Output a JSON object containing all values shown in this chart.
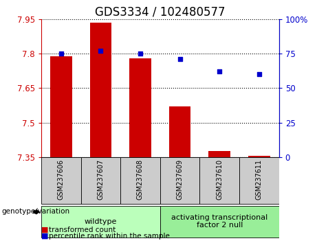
{
  "title": "GDS3334 / 102480577",
  "categories": [
    "GSM237606",
    "GSM237607",
    "GSM237608",
    "GSM237609",
    "GSM237610",
    "GSM237611"
  ],
  "bar_values": [
    7.79,
    7.935,
    7.78,
    7.57,
    7.375,
    7.356
  ],
  "percentile_values": [
    75,
    77,
    75,
    71,
    62,
    60
  ],
  "y_min": 7.35,
  "y_max": 7.95,
  "y_ticks": [
    7.35,
    7.5,
    7.65,
    7.8,
    7.95
  ],
  "y2_ticks": [
    0,
    25,
    50,
    75,
    100
  ],
  "bar_color": "#cc0000",
  "point_color": "#0000cc",
  "bar_bottom": 7.35,
  "groups": [
    {
      "label": "wildtype",
      "indices": [
        0,
        1,
        2
      ],
      "color": "#bbffbb"
    },
    {
      "label": "activating transcriptional\nfactor 2 null",
      "indices": [
        3,
        4,
        5
      ],
      "color": "#99ee99"
    }
  ],
  "group_header": "genotype/variation",
  "legend_bar_label": "transformed count",
  "legend_point_label": "percentile rank within the sample",
  "title_fontsize": 12,
  "tick_fontsize": 8.5,
  "label_fontsize": 8.5,
  "group_label_fontsize": 8,
  "grid_linestyle": "dotted"
}
